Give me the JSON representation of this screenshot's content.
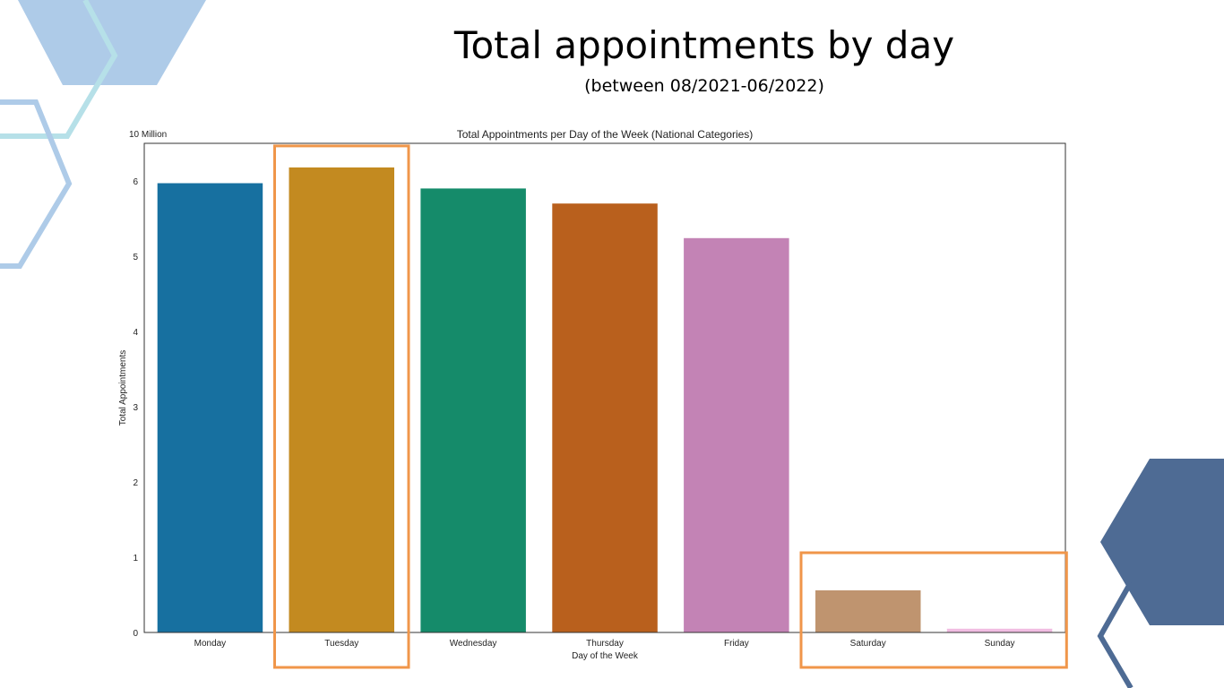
{
  "slide": {
    "title": "Total appointments by day",
    "subtitle": "(between 08/2021-06/2022)"
  },
  "colors": {
    "highlight": "#f0964a",
    "deco_light_blue": "#aecbe8",
    "deco_teal": "#b6e0e8",
    "deco_dark_blue": "#4e6b94"
  },
  "chart_data": {
    "type": "bar",
    "title": "Total Appointments per Day of the Week (National Categories)",
    "xlabel": "Day of the Week",
    "ylabel": "Total Appointments",
    "scale_label": "10 Million",
    "categories": [
      "Monday",
      "Tuesday",
      "Wednesday",
      "Thursday",
      "Friday",
      "Saturday",
      "Sunday"
    ],
    "values": [
      5.97,
      6.18,
      5.9,
      5.7,
      5.24,
      0.56,
      0.05
    ],
    "colors": [
      "#1770a0",
      "#c38a20",
      "#158b6a",
      "#b9601d",
      "#c383b5",
      "#bf946f",
      "#f1bde2"
    ],
    "ylim": [
      0,
      6.5
    ],
    "yticks": [
      0,
      1,
      2,
      3,
      4,
      5,
      6
    ],
    "grid": false,
    "highlighted_categories": [
      "Tuesday",
      "Saturday",
      "Sunday"
    ]
  }
}
